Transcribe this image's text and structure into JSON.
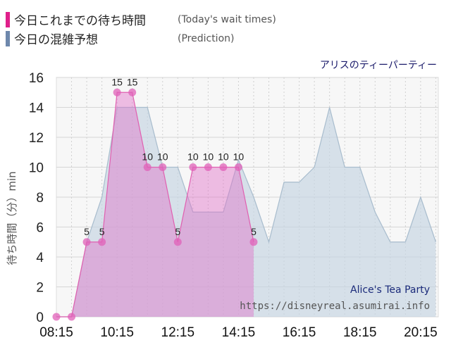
{
  "legend": {
    "actual_label": "今日これまでの待ち時間",
    "actual_sub": "(Today's wait times)",
    "prediction_label": "今日の混雑予想",
    "prediction_sub": "(Prediction)"
  },
  "attraction_name": "アリスのティーパーティー",
  "watermark": {
    "name": "Alice's Tea Party",
    "url": "https://disneyreal.asumirai.info"
  },
  "colors": {
    "actual_line": "#e060b0",
    "actual_fill": "#e070c8",
    "actual_marker": "#e060b8",
    "prediction_fill": "#c4d4e2",
    "prediction_line": "#a8bccd",
    "actual_swatch": "#e0208a",
    "prediction_swatch": "#6e88ac"
  },
  "chart_data": {
    "type": "area",
    "ylabel": "待ち時間（分）min",
    "xlabel": "",
    "ylim": [
      0,
      16
    ],
    "yticks": [
      0,
      2,
      4,
      6,
      8,
      10,
      12,
      14,
      16
    ],
    "xticks": [
      "08:15",
      "10:15",
      "12:15",
      "14:15",
      "16:15",
      "18:15",
      "20:15"
    ],
    "x_range": [
      "08:15",
      "20:50"
    ],
    "grid": true,
    "series": [
      {
        "name": "今日の混雑予想",
        "points": [
          [
            "08:15",
            0
          ],
          [
            "08:45",
            0
          ],
          [
            "09:15",
            5
          ],
          [
            "09:45",
            8
          ],
          [
            "10:15",
            14
          ],
          [
            "10:45",
            14
          ],
          [
            "11:15",
            14
          ],
          [
            "11:45",
            10
          ],
          [
            "12:15",
            10
          ],
          [
            "12:45",
            7
          ],
          [
            "13:15",
            7
          ],
          [
            "13:45",
            7
          ],
          [
            "14:15",
            10.5
          ],
          [
            "14:45",
            8
          ],
          [
            "15:15",
            5
          ],
          [
            "15:45",
            9
          ],
          [
            "16:15",
            9
          ],
          [
            "16:45",
            10
          ],
          [
            "17:15",
            14
          ],
          [
            "17:45",
            10
          ],
          [
            "18:15",
            10
          ],
          [
            "18:45",
            7
          ],
          [
            "19:15",
            5
          ],
          [
            "19:45",
            5
          ],
          [
            "20:15",
            8
          ],
          [
            "20:45",
            5
          ]
        ]
      },
      {
        "name": "今日これまでの待ち時間",
        "points": [
          [
            "08:15",
            0
          ],
          [
            "08:45",
            0
          ],
          [
            "09:15",
            5
          ],
          [
            "09:45",
            5
          ],
          [
            "10:15",
            15
          ],
          [
            "10:45",
            15
          ],
          [
            "11:15",
            10
          ],
          [
            "11:45",
            10
          ],
          [
            "12:15",
            5
          ],
          [
            "12:45",
            10
          ],
          [
            "13:15",
            10
          ],
          [
            "13:45",
            10
          ],
          [
            "14:15",
            10
          ],
          [
            "14:45",
            5
          ]
        ],
        "data_labels": [
          {
            "x": "09:15",
            "y": 5,
            "text": "5"
          },
          {
            "x": "09:45",
            "y": 5,
            "text": "5"
          },
          {
            "x": "10:15",
            "y": 15,
            "text": "15"
          },
          {
            "x": "10:45",
            "y": 15,
            "text": "15"
          },
          {
            "x": "11:15",
            "y": 10,
            "text": "10"
          },
          {
            "x": "11:45",
            "y": 10,
            "text": "10"
          },
          {
            "x": "12:15",
            "y": 5,
            "text": "5"
          },
          {
            "x": "12:45",
            "y": 10,
            "text": "10"
          },
          {
            "x": "13:15",
            "y": 10,
            "text": "10"
          },
          {
            "x": "13:45",
            "y": 10,
            "text": "10"
          },
          {
            "x": "14:15",
            "y": 10,
            "text": "10"
          },
          {
            "x": "14:45",
            "y": 5,
            "text": "5"
          }
        ]
      }
    ]
  }
}
